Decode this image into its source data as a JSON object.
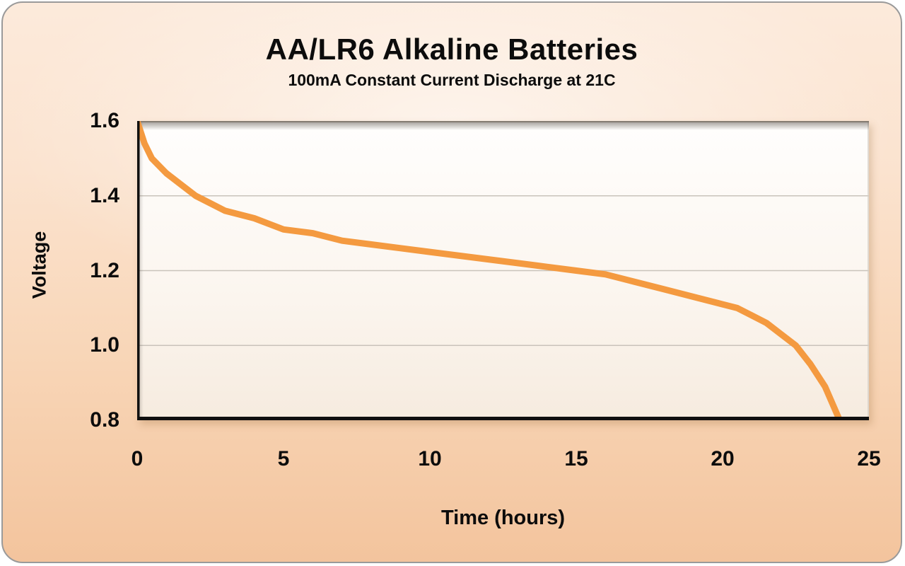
{
  "chart_data": {
    "type": "line",
    "title": "AA/LR6 Alkaline Batteries",
    "subtitle": "100mA Constant Current Discharge at 21C",
    "xlabel": "Time (hours)",
    "ylabel": "Voltage",
    "xlim": [
      0,
      25
    ],
    "ylim": [
      0.8,
      1.6
    ],
    "xticks": [
      0,
      5,
      10,
      15,
      20,
      25
    ],
    "xtick_labels": [
      "0",
      "5",
      "10",
      "15",
      "20",
      "25"
    ],
    "yticks": [
      1.6,
      1.4,
      1.2,
      1.0,
      0.8
    ],
    "ytick_labels": [
      "1.6",
      "1.4",
      "1.2",
      "1.0",
      "0.8"
    ],
    "grid": true,
    "legend": false,
    "line_color": "#F49A40",
    "series": [
      {
        "name": "AA/LR6 alkaline 100mA constant current discharge at 21C",
        "x": [
          0,
          0.25,
          0.5,
          1,
          1.5,
          2,
          2.5,
          3,
          4,
          5,
          6,
          7,
          8,
          9,
          10,
          11,
          12,
          13,
          14,
          15,
          16,
          17,
          18,
          19,
          20,
          20.5,
          21,
          21.5,
          22,
          22.5,
          23,
          23.5,
          24
        ],
        "y": [
          1.6,
          1.54,
          1.5,
          1.46,
          1.43,
          1.4,
          1.38,
          1.36,
          1.34,
          1.31,
          1.3,
          1.28,
          1.27,
          1.26,
          1.25,
          1.24,
          1.23,
          1.22,
          1.21,
          1.2,
          1.19,
          1.17,
          1.15,
          1.13,
          1.11,
          1.1,
          1.08,
          1.06,
          1.03,
          1.0,
          0.95,
          0.89,
          0.8
        ]
      }
    ]
  }
}
